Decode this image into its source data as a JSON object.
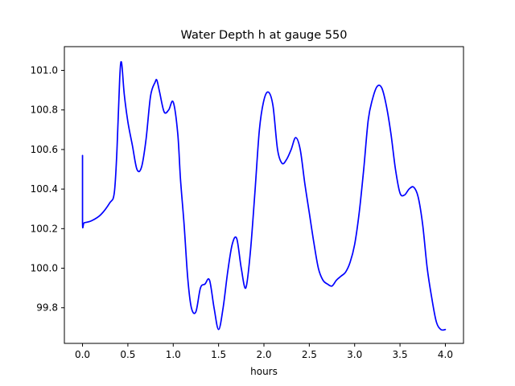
{
  "chart_data": {
    "type": "line",
    "title": "Water Depth h at gauge 550",
    "xlabel": "hours",
    "ylabel": "",
    "xlim": [
      -0.2,
      4.2
    ],
    "ylim": [
      99.62,
      101.12
    ],
    "xticks": [
      0.0,
      0.5,
      1.0,
      1.5,
      2.0,
      2.5,
      3.0,
      3.5,
      4.0
    ],
    "xtick_labels": [
      "0.0",
      "0.5",
      "1.0",
      "1.5",
      "2.0",
      "2.5",
      "3.0",
      "3.5",
      "4.0"
    ],
    "yticks": [
      99.8,
      100.0,
      100.2,
      100.4,
      100.6,
      100.8,
      101.0
    ],
    "ytick_labels": [
      "99.8",
      "100.0",
      "100.2",
      "100.4",
      "100.6",
      "100.8",
      "101.0"
    ],
    "grid": false,
    "series": [
      {
        "color": "#0000ff",
        "x": [
          0.0,
          0.0,
          0.02,
          0.1,
          0.2,
          0.3,
          0.35,
          0.38,
          0.41,
          0.43,
          0.46,
          0.5,
          0.55,
          0.6,
          0.65,
          0.7,
          0.75,
          0.8,
          0.82,
          0.85,
          0.9,
          0.95,
          1.0,
          1.05,
          1.08,
          1.12,
          1.16,
          1.2,
          1.25,
          1.3,
          1.35,
          1.4,
          1.45,
          1.5,
          1.55,
          1.6,
          1.65,
          1.7,
          1.75,
          1.8,
          1.85,
          1.9,
          1.95,
          2.0,
          2.05,
          2.1,
          2.15,
          2.2,
          2.25,
          2.3,
          2.35,
          2.4,
          2.45,
          2.5,
          2.55,
          2.6,
          2.65,
          2.7,
          2.75,
          2.8,
          2.85,
          2.9,
          2.95,
          3.0,
          3.05,
          3.1,
          3.15,
          3.2,
          3.25,
          3.3,
          3.35,
          3.4,
          3.45,
          3.5,
          3.55,
          3.6,
          3.65,
          3.7,
          3.75,
          3.8,
          3.85,
          3.9,
          3.95,
          4.0
        ],
        "y": [
          100.57,
          100.23,
          100.23,
          100.24,
          100.27,
          100.33,
          100.38,
          100.6,
          100.96,
          101.04,
          100.88,
          100.74,
          100.62,
          100.5,
          100.51,
          100.65,
          100.87,
          100.94,
          100.95,
          100.89,
          100.79,
          100.8,
          100.84,
          100.68,
          100.45,
          100.22,
          99.95,
          99.8,
          99.78,
          99.9,
          99.92,
          99.94,
          99.8,
          99.69,
          99.8,
          99.98,
          100.12,
          100.15,
          100.0,
          99.9,
          100.08,
          100.38,
          100.7,
          100.85,
          100.89,
          100.82,
          100.6,
          100.53,
          100.55,
          100.6,
          100.66,
          100.6,
          100.43,
          100.28,
          100.13,
          100.0,
          99.94,
          99.92,
          99.91,
          99.94,
          99.96,
          99.98,
          100.03,
          100.12,
          100.28,
          100.5,
          100.75,
          100.86,
          100.92,
          100.91,
          100.82,
          100.68,
          100.5,
          100.38,
          100.37,
          100.4,
          100.41,
          100.36,
          100.22,
          100.0,
          99.85,
          99.73,
          99.69,
          99.69
        ]
      }
    ]
  }
}
